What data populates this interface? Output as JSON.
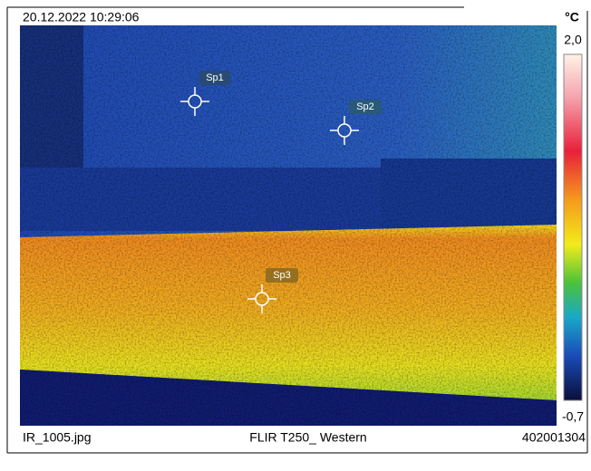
{
  "header": {
    "timestamp": "20.12.2022 10:29:06"
  },
  "scale": {
    "unit": "°C",
    "max": "2,0",
    "min": "-0,7"
  },
  "spots": [
    {
      "label": "Sp1"
    },
    {
      "label": "Sp2"
    },
    {
      "label": "Sp3"
    }
  ],
  "footer": {
    "file": "IR_1005.jpg",
    "camera": "FLIR T250_ Western",
    "serial": "402001304"
  }
}
